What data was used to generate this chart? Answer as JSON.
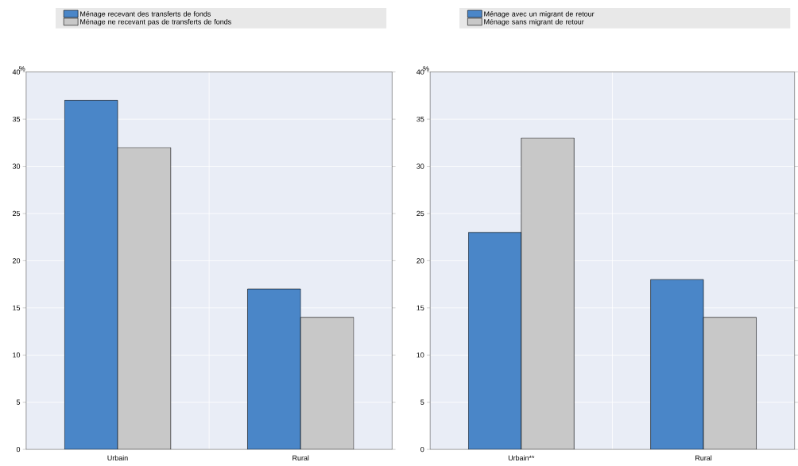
{
  "chart_data": [
    {
      "type": "bar",
      "categories": [
        "Urbain",
        "Rural"
      ],
      "ylabel": "%",
      "ylim": [
        0,
        40
      ],
      "yticks": [
        0,
        5,
        10,
        15,
        20,
        25,
        30,
        35,
        40
      ],
      "grid": "y",
      "legend": "top",
      "series": [
        {
          "name": "Ménage recevant des transferts de fonds",
          "color": "#4a86c8",
          "values": [
            37,
            17
          ]
        },
        {
          "name": "Ménage ne recevant pas de transferts de fonds",
          "color": "#c8c8c8",
          "values": [
            32,
            14
          ]
        }
      ]
    },
    {
      "type": "bar",
      "categories": [
        "Urbain**",
        "Rural"
      ],
      "ylabel": "%",
      "ylim": [
        0,
        40
      ],
      "yticks": [
        0,
        5,
        10,
        15,
        20,
        25,
        30,
        35,
        40
      ],
      "grid": "y",
      "legend": "top",
      "series": [
        {
          "name": "Ménage avec un migrant de retour",
          "color": "#4a86c8",
          "values": [
            23,
            18
          ]
        },
        {
          "name": "Ménage sans migrant de retour",
          "color": "#c8c8c8",
          "values": [
            33,
            14
          ]
        }
      ]
    }
  ]
}
